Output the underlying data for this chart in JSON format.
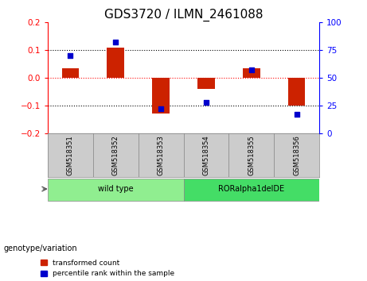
{
  "title": "GDS3720 / ILMN_2461088",
  "samples": [
    "GSM518351",
    "GSM518352",
    "GSM518353",
    "GSM518354",
    "GSM518355",
    "GSM518356"
  ],
  "red_bars": [
    0.035,
    0.11,
    -0.13,
    -0.04,
    0.035,
    -0.1
  ],
  "blue_dots": [
    70,
    82,
    22,
    28,
    57,
    17
  ],
  "ylim_left": [
    -0.2,
    0.2
  ],
  "ylim_right": [
    0,
    100
  ],
  "yticks_left": [
    -0.2,
    -0.1,
    0.0,
    0.1,
    0.2
  ],
  "yticks_right": [
    0,
    25,
    50,
    75,
    100
  ],
  "groups": [
    {
      "label": "wild type",
      "samples": [
        0,
        1,
        2
      ],
      "color": "#90EE90"
    },
    {
      "label": "RORalpha1delDE",
      "samples": [
        3,
        4,
        5
      ],
      "color": "#44DD66"
    }
  ],
  "group_label": "genotype/variation",
  "bar_color": "#CC2200",
  "dot_color": "#0000CC",
  "bg_color": "#FFFFFF",
  "sample_box_color": "#CCCCCC",
  "legend_red_label": "transformed count",
  "legend_blue_label": "percentile rank within the sample",
  "title_fontsize": 11,
  "tick_fontsize": 7.5,
  "label_fontsize": 7.5
}
